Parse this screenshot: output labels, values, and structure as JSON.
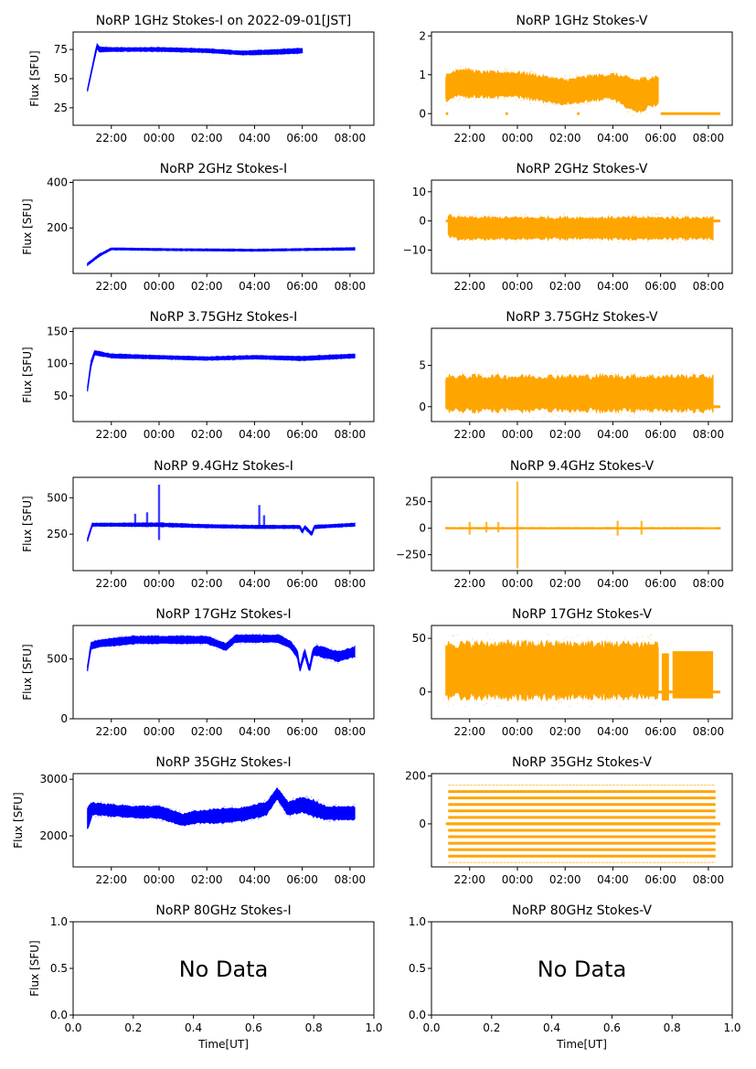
{
  "figure": {
    "date_label": "2022-09-01[JST]",
    "ylabel": "Flux [SFU]",
    "xlabel": "Time[UT]",
    "no_data_text": "No Data",
    "colors": {
      "stokes_i": "#0000ff",
      "stokes_v": "#ffa500",
      "axis": "#000000"
    }
  },
  "chart_data": [
    {
      "id": "1ghz-i",
      "type": "scatter",
      "title": "NoRP 1GHz Stokes-I on 2022-09-01[JST]",
      "ylabel": "Flux [SFU]",
      "series": "I",
      "ylim": [
        10,
        90
      ],
      "yticks": [
        25,
        50,
        75
      ],
      "ytick_labels": [
        "25",
        "50",
        "75"
      ],
      "xlim_hours": [
        -3.6,
        9.0
      ],
      "xtick_labels": [
        "22:00",
        "00:00",
        "02:00",
        "04:00",
        "06:00",
        "08:00"
      ],
      "xtick_hours": [
        -2,
        0,
        2,
        4,
        6,
        8
      ],
      "envelope": {
        "t": [
          -3.0,
          -2.6,
          -2.5,
          -2.0,
          0,
          2,
          3.5,
          5,
          6.0
        ],
        "center": [
          40,
          78,
          75,
          75,
          75,
          74,
          72,
          73,
          74
        ],
        "half_width": [
          1,
          2,
          2,
          1.5,
          1.5,
          1.5,
          1.5,
          2,
          2
        ]
      }
    },
    {
      "id": "1ghz-v",
      "type": "scatter",
      "title": "NoRP 1GHz Stokes-V",
      "ylabel": "",
      "series": "V",
      "ylim": [
        -0.3,
        2.1
      ],
      "yticks": [
        0,
        1,
        2
      ],
      "ytick_labels": [
        "0",
        "1",
        "2"
      ],
      "xlim_hours": [
        -3.6,
        9.0
      ],
      "xtick_labels": [
        "22:00",
        "00:00",
        "02:00",
        "04:00",
        "06:00",
        "08:00"
      ],
      "xtick_hours": [
        -2,
        0,
        2,
        4,
        6,
        8
      ],
      "envelope": {
        "t": [
          -3.0,
          -2.5,
          -1.5,
          0,
          1,
          2,
          3,
          4,
          5,
          5.9
        ],
        "center": [
          0.65,
          0.8,
          0.75,
          0.75,
          0.65,
          0.55,
          0.65,
          0.7,
          0.45,
          0.6
        ],
        "half_width": [
          0.3,
          0.35,
          0.3,
          0.3,
          0.3,
          0.3,
          0.3,
          0.3,
          0.4,
          0.35
        ]
      },
      "zero_segments": [
        [
          -3.0,
          -2.9
        ],
        [
          -0.5,
          -0.4
        ],
        [
          2.5,
          2.6
        ],
        [
          6.0,
          8.5
        ]
      ]
    },
    {
      "id": "2ghz-i",
      "type": "scatter",
      "title": "NoRP 2GHz Stokes-I",
      "ylabel": "Flux [SFU]",
      "series": "I",
      "ylim": [
        0,
        410
      ],
      "yticks": [
        200,
        400
      ],
      "ytick_labels": [
        "200",
        "400"
      ],
      "xlim_hours": [
        -3.6,
        9.0
      ],
      "xtick_labels": [
        "22:00",
        "00:00",
        "02:00",
        "04:00",
        "06:00",
        "08:00"
      ],
      "xtick_hours": [
        -2,
        0,
        2,
        4,
        6,
        8
      ],
      "envelope": {
        "t": [
          -3.0,
          -2.5,
          -2.0,
          0,
          4,
          6,
          8.2
        ],
        "center": [
          40,
          80,
          108,
          105,
          102,
          105,
          108
        ],
        "half_width": [
          5,
          5,
          4,
          4,
          4,
          4,
          5
        ]
      }
    },
    {
      "id": "2ghz-v",
      "type": "scatter",
      "title": "NoRP 2GHz Stokes-V",
      "ylabel": "",
      "series": "V",
      "ylim": [
        -18,
        14
      ],
      "yticks": [
        -10,
        0,
        10
      ],
      "ytick_labels": [
        "−10",
        "0",
        "10"
      ],
      "xlim_hours": [
        -3.6,
        9.0
      ],
      "xtick_labels": [
        "22:00",
        "00:00",
        "02:00",
        "04:00",
        "06:00",
        "08:00"
      ],
      "xtick_hours": [
        -2,
        0,
        2,
        4,
        6,
        8
      ],
      "envelope": {
        "t": [
          -2.9,
          -2.5,
          0,
          4,
          8.2
        ],
        "center": [
          -1.5,
          -2.5,
          -2.5,
          -2.5,
          -2.5
        ],
        "half_width": [
          3.5,
          3.5,
          3.5,
          3.5,
          3.5
        ]
      },
      "zero_segments": [
        [
          -3.0,
          -2.9
        ],
        [
          8.2,
          8.5
        ]
      ]
    },
    {
      "id": "375ghz-i",
      "type": "scatter",
      "title": "NoRP 3.75GHz Stokes-I",
      "ylabel": "Flux [SFU]",
      "series": "I",
      "ylim": [
        10,
        155
      ],
      "yticks": [
        50,
        100,
        150
      ],
      "ytick_labels": [
        "50",
        "100",
        "150"
      ],
      "xlim_hours": [
        -3.6,
        9.0
      ],
      "xtick_labels": [
        "22:00",
        "00:00",
        "02:00",
        "04:00",
        "06:00",
        "08:00"
      ],
      "xtick_hours": [
        -2,
        0,
        2,
        4,
        6,
        8
      ],
      "envelope": {
        "t": [
          -3.0,
          -2.85,
          -2.7,
          -2,
          0,
          2,
          4,
          6,
          8.2
        ],
        "center": [
          60,
          100,
          117,
          112,
          110,
          108,
          110,
          108,
          112
        ],
        "half_width": [
          3,
          5,
          3,
          3,
          2.5,
          2.5,
          2.5,
          3,
          3
        ]
      }
    },
    {
      "id": "375ghz-v",
      "type": "scatter",
      "title": "NoRP 3.75GHz Stokes-V",
      "ylabel": "",
      "series": "V",
      "ylim": [
        -1.8,
        9.5
      ],
      "yticks": [
        0,
        5
      ],
      "ytick_labels": [
        "0",
        "5"
      ],
      "xlim_hours": [
        -3.6,
        9.0
      ],
      "xtick_labels": [
        "22:00",
        "00:00",
        "02:00",
        "04:00",
        "06:00",
        "08:00"
      ],
      "xtick_hours": [
        -2,
        0,
        2,
        4,
        6,
        8
      ],
      "envelope": {
        "t": [
          -3.0,
          0,
          4,
          8.2
        ],
        "center": [
          1.6,
          1.6,
          1.6,
          1.6
        ],
        "half_width": [
          2.0,
          2.0,
          2.0,
          2.0
        ]
      },
      "zero_segments": [
        [
          8.2,
          8.5
        ]
      ]
    },
    {
      "id": "94ghz-i",
      "type": "scatter",
      "title": "NoRP 9.4GHz Stokes-I",
      "ylabel": "Flux [SFU]",
      "series": "I",
      "ylim": [
        0,
        640
      ],
      "yticks": [
        250,
        500
      ],
      "ytick_labels": [
        "250",
        "500"
      ],
      "xlim_hours": [
        -3.6,
        9.0
      ],
      "xtick_labels": [
        "22:00",
        "00:00",
        "02:00",
        "04:00",
        "06:00",
        "08:00"
      ],
      "xtick_hours": [
        -2,
        0,
        2,
        4,
        6,
        8
      ],
      "envelope": {
        "t": [
          -3.0,
          -2.8,
          -2,
          0,
          2,
          4,
          5.9,
          6.0,
          6.1,
          6.4,
          6.5,
          8.2
        ],
        "center": [
          210,
          315,
          315,
          315,
          305,
          300,
          300,
          265,
          300,
          250,
          300,
          315
        ],
        "half_width": [
          10,
          10,
          10,
          12,
          10,
          10,
          10,
          10,
          10,
          10,
          10,
          10
        ]
      },
      "spikes": [
        [
          0.0,
          590,
          210
        ],
        [
          -0.5,
          400,
          300
        ],
        [
          -1.0,
          390,
          300
        ],
        [
          4.2,
          450,
          300
        ],
        [
          4.4,
          380,
          300
        ]
      ]
    },
    {
      "id": "94ghz-v",
      "type": "scatter",
      "title": "NoRP 9.4GHz Stokes-V",
      "ylabel": "",
      "series": "V",
      "ylim": [
        -400,
        480
      ],
      "yticks": [
        -250,
        0,
        250
      ],
      "ytick_labels": [
        "−250",
        "0",
        "250"
      ],
      "xlim_hours": [
        -3.6,
        9.0
      ],
      "xtick_labels": [
        "22:00",
        "00:00",
        "02:00",
        "04:00",
        "06:00",
        "08:00"
      ],
      "xtick_hours": [
        -2,
        0,
        2,
        4,
        6,
        8
      ],
      "envelope": {
        "t": [
          -3.0,
          8.5
        ],
        "center": [
          0,
          0
        ],
        "half_width": [
          6,
          6
        ]
      },
      "spikes": [
        [
          0.0,
          440,
          -380
        ],
        [
          -2.0,
          60,
          -60
        ],
        [
          -1.3,
          60,
          -40
        ],
        [
          -0.8,
          60,
          -40
        ],
        [
          4.2,
          70,
          -70
        ],
        [
          5.2,
          70,
          -60
        ]
      ]
    },
    {
      "id": "17ghz-i",
      "type": "scatter",
      "title": "NoRP 17GHz Stokes-I",
      "ylabel": "Flux [SFU]",
      "series": "I",
      "ylim": [
        0,
        780
      ],
      "yticks": [
        0,
        500
      ],
      "ytick_labels": [
        "0",
        "500"
      ],
      "xlim_hours": [
        -3.6,
        9.0
      ],
      "xtick_labels": [
        "22:00",
        "00:00",
        "02:00",
        "04:00",
        "06:00",
        "08:00"
      ],
      "xtick_hours": [
        -2,
        0,
        2,
        4,
        6,
        8
      ],
      "envelope": {
        "t": [
          -3.0,
          -2.85,
          -2.5,
          -1,
          0,
          1,
          2,
          2.8,
          3.2,
          4,
          5,
          5.5,
          5.8,
          5.9,
          6.1,
          6.3,
          6.45,
          6.6,
          7,
          7.5,
          8.2
        ],
        "center": [
          420,
          610,
          630,
          660,
          660,
          660,
          660,
          600,
          670,
          670,
          670,
          620,
          540,
          410,
          560,
          410,
          560,
          570,
          550,
          520,
          560
        ],
        "half_width": [
          20,
          25,
          30,
          30,
          30,
          30,
          30,
          30,
          30,
          30,
          30,
          30,
          30,
          20,
          30,
          20,
          30,
          40,
          40,
          40,
          40
        ]
      }
    },
    {
      "id": "17ghz-v",
      "type": "scatter",
      "title": "NoRP 17GHz Stokes-V",
      "ylabel": "",
      "series": "V",
      "ylim": [
        -25,
        62
      ],
      "yticks": [
        0,
        50
      ],
      "ytick_labels": [
        "0",
        "50"
      ],
      "xlim_hours": [
        -3.6,
        9.0
      ],
      "xtick_labels": [
        "22:00",
        "00:00",
        "02:00",
        "04:00",
        "06:00",
        "08:00"
      ],
      "xtick_hours": [
        -2,
        0,
        2,
        4,
        6,
        8
      ],
      "envelope": {
        "t": [
          -3.0,
          5.9
        ],
        "center": [
          20,
          20
        ],
        "half_width": [
          24,
          24
        ]
      },
      "extra_bands": [
        [
          6.05,
          6.35,
          14,
          22
        ],
        [
          6.5,
          8.2,
          16,
          22
        ]
      ],
      "zero_segments": [
        [
          -3.0,
          -2.9
        ],
        [
          5.9,
          6.5
        ],
        [
          8.2,
          8.5
        ]
      ]
    },
    {
      "id": "35ghz-i",
      "type": "scatter",
      "title": "NoRP 35GHz Stokes-I",
      "ylabel": "Flux [SFU]",
      "series": "I",
      "ylim": [
        1450,
        3100
      ],
      "yticks": [
        2000,
        3000
      ],
      "ytick_labels": [
        "2000",
        "3000"
      ],
      "xlim_hours": [
        -3.6,
        9.0
      ],
      "xtick_labels": [
        "22:00",
        "00:00",
        "02:00",
        "04:00",
        "06:00",
        "08:00"
      ],
      "xtick_hours": [
        -2,
        0,
        2,
        4,
        6,
        8
      ],
      "envelope": {
        "t": [
          -3.0,
          -2.8,
          -2,
          -1,
          0,
          1,
          1.5,
          2.5,
          3.5,
          4.5,
          4.95,
          5.4,
          6.0,
          6.5,
          7,
          8.2
        ],
        "center": [
          2300,
          2480,
          2450,
          2420,
          2420,
          2280,
          2330,
          2350,
          2380,
          2480,
          2750,
          2480,
          2550,
          2480,
          2400,
          2400
        ],
        "half_width": [
          200,
          100,
          100,
          100,
          100,
          100,
          100,
          120,
          110,
          110,
          90,
          120,
          120,
          140,
          110,
          110
        ]
      }
    },
    {
      "id": "35ghz-v",
      "type": "scatter",
      "title": "NoRP 35GHz Stokes-V",
      "ylabel": "",
      "series": "V",
      "ylim": [
        -180,
        210
      ],
      "yticks": [
        0,
        200
      ],
      "ytick_labels": [
        "0",
        "200"
      ],
      "xlim_hours": [
        -3.6,
        9.0
      ],
      "xtick_labels": [
        "22:00",
        "00:00",
        "02:00",
        "04:00",
        "06:00",
        "08:00"
      ],
      "xtick_hours": [
        -2,
        0,
        2,
        4,
        6,
        8
      ],
      "quantized_levels": [
        -162,
        -135,
        -108,
        -81,
        -54,
        -27,
        0,
        27,
        54,
        81,
        108,
        135,
        162
      ],
      "level_span_hours": [
        -2.9,
        8.3
      ],
      "zero_segments": [
        [
          -3.0,
          8.5
        ]
      ]
    },
    {
      "id": "80ghz-i",
      "type": "empty",
      "title": "NoRP 80GHz Stokes-I",
      "ylabel": "Flux [SFU]",
      "xlabel": "Time[UT]",
      "ylim": [
        0,
        1
      ],
      "xlim": [
        0,
        1
      ],
      "yticks": [
        0,
        0.5,
        1.0
      ],
      "ytick_labels": [
        "0.0",
        "0.5",
        "1.0"
      ],
      "xticks": [
        0,
        0.2,
        0.4,
        0.6,
        0.8,
        1.0
      ],
      "xtick_labels": [
        "0.0",
        "0.2",
        "0.4",
        "0.6",
        "0.8",
        "1.0"
      ],
      "annotation": "No Data"
    },
    {
      "id": "80ghz-v",
      "type": "empty",
      "title": "NoRP 80GHz Stokes-V",
      "ylabel": "",
      "xlabel": "Time[UT]",
      "ylim": [
        0,
        1
      ],
      "xlim": [
        0,
        1
      ],
      "yticks": [
        0,
        0.5,
        1.0
      ],
      "ytick_labels": [
        "0.0",
        "0.5",
        "1.0"
      ],
      "xticks": [
        0,
        0.2,
        0.4,
        0.6,
        0.8,
        1.0
      ],
      "xtick_labels": [
        "0.0",
        "0.2",
        "0.4",
        "0.6",
        "0.8",
        "1.0"
      ],
      "annotation": "No Data"
    }
  ]
}
